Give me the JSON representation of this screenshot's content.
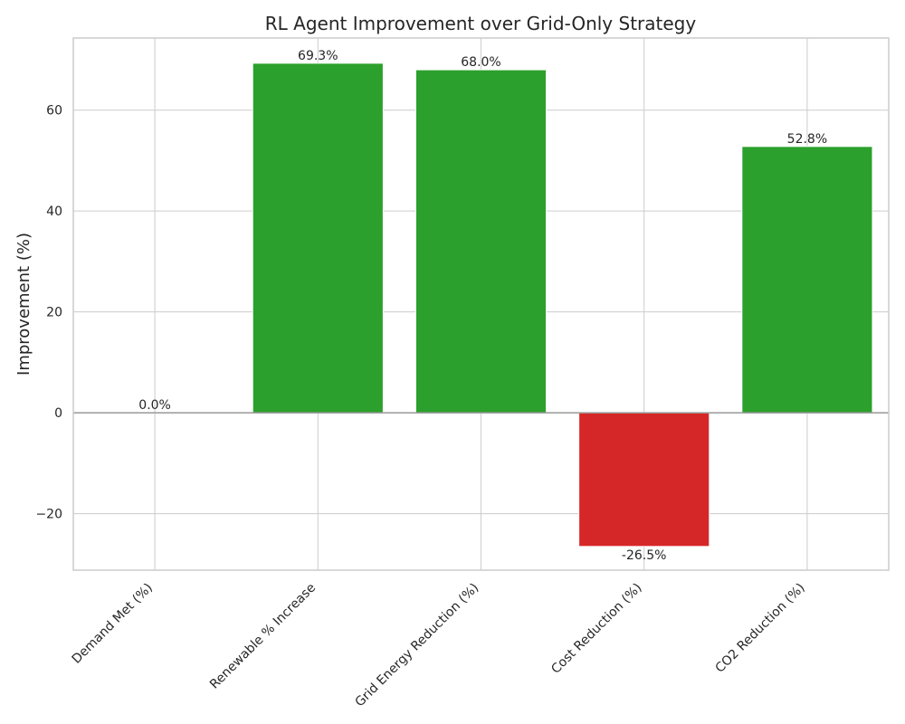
{
  "chart_data": {
    "type": "bar",
    "title": "RL Agent Improvement over Grid-Only Strategy",
    "xlabel": "",
    "ylabel": "Improvement (%)",
    "categories": [
      "Demand Met (%)",
      "Renewable % Increase",
      "Grid Energy Reduction (%)",
      "Cost Reduction (%)",
      "CO2 Reduction (%)"
    ],
    "values": [
      0.0,
      69.3,
      68.0,
      -26.5,
      52.8
    ],
    "value_labels": [
      "0.0%",
      "69.3%",
      "68.0%",
      "-26.5%",
      "52.8%"
    ],
    "bar_colors": [
      "#2ca02c",
      "#2ca02c",
      "#2ca02c",
      "#d62728",
      "#2ca02c"
    ],
    "ylim": [
      -31.2,
      74.3
    ],
    "yticks": [
      -20,
      0,
      20,
      40,
      60
    ],
    "grid": true,
    "zero_line": true,
    "colors": {
      "positive": "#2ca02c",
      "negative": "#d62728",
      "grid": "#cccccc",
      "zero_line": "#999999",
      "spine": "#cccccc"
    }
  }
}
